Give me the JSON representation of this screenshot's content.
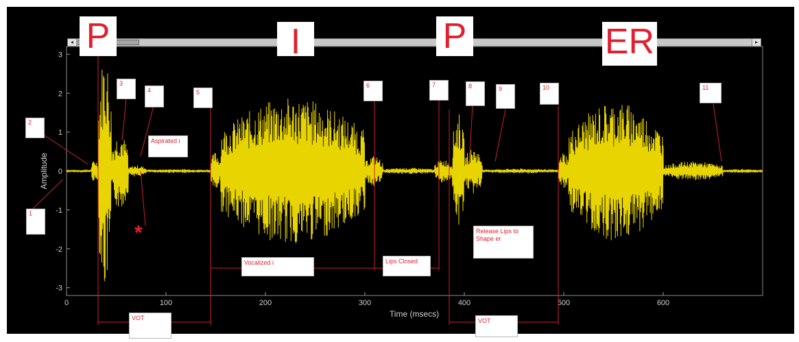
{
  "chart_data": {
    "type": "line",
    "title": "",
    "xlabel": "Time (msecs)",
    "ylabel": "Amplitude",
    "xlim": [
      0,
      700
    ],
    "ylim": [
      -3.2,
      3.2
    ],
    "x_ticks": [
      "0",
      "100",
      "200",
      "300",
      "400",
      "500",
      "600"
    ],
    "y_ticks": [
      "3",
      "2",
      "1",
      "0",
      "-1",
      "-2",
      "-3"
    ],
    "grid": false,
    "series": [
      {
        "color": "#e8d400",
        "bursts": [
          {
            "start": 25,
            "end": 32,
            "peak": 0.3
          },
          {
            "start": 32,
            "end": 45,
            "peak": 3.1
          },
          {
            "start": 45,
            "end": 62,
            "peak": 1.0
          },
          {
            "start": 62,
            "end": 80,
            "peak": 0.15
          },
          {
            "start": 80,
            "end": 145,
            "peak": 0.05
          },
          {
            "start": 145,
            "end": 155,
            "peak": 0.5
          },
          {
            "start": 155,
            "end": 300,
            "peak": 1.9
          },
          {
            "start": 300,
            "end": 318,
            "peak": 0.4
          },
          {
            "start": 318,
            "end": 370,
            "peak": 0.08
          },
          {
            "start": 370,
            "end": 388,
            "peak": 0.3
          },
          {
            "start": 388,
            "end": 400,
            "peak": 1.5
          },
          {
            "start": 400,
            "end": 418,
            "peak": 0.6
          },
          {
            "start": 418,
            "end": 495,
            "peak": 0.06
          },
          {
            "start": 495,
            "end": 505,
            "peak": 0.5
          },
          {
            "start": 505,
            "end": 600,
            "peak": 1.8
          },
          {
            "start": 600,
            "end": 660,
            "peak": 0.25
          },
          {
            "start": 660,
            "end": 700,
            "peak": 0.05
          }
        ]
      }
    ],
    "segments": [
      "P",
      "I",
      "P",
      "ER"
    ],
    "markers": [
      "1",
      "2",
      "3",
      "4",
      "5",
      "6",
      "7",
      "8",
      "9",
      "10",
      "11"
    ],
    "annotations": [
      "Aspirated i",
      "Vocalized i",
      "Lips Closed",
      "Release Lips to Shape er",
      "VOT",
      "VOT",
      "*"
    ]
  },
  "scrollbar": {
    "left_arrow": "◂",
    "right_arrow": "▸"
  }
}
